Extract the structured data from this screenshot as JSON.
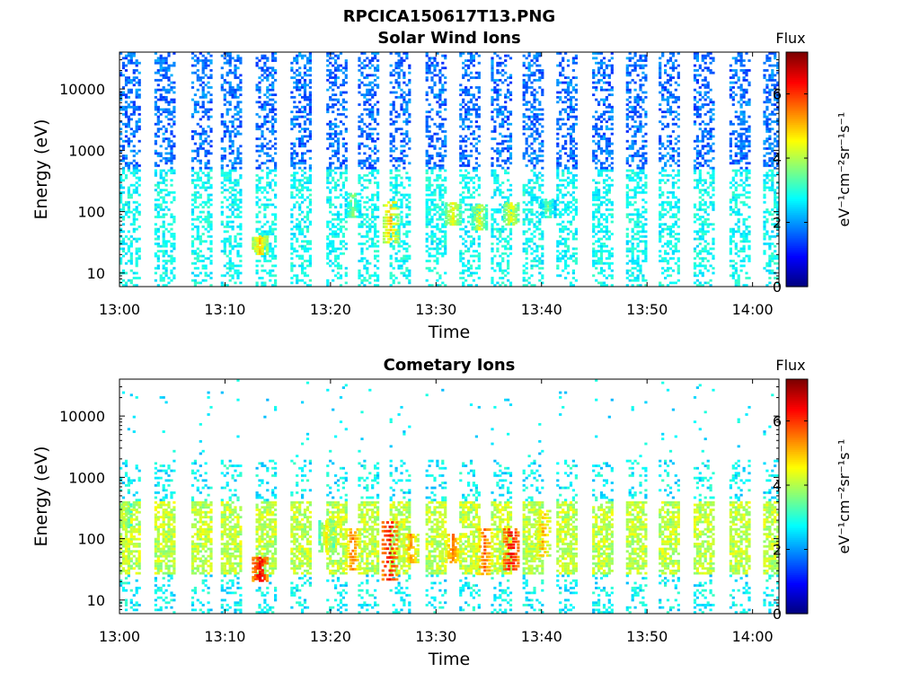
{
  "figure": {
    "title": "RPCICA150617T13.PNG"
  },
  "chart_data": [
    {
      "type": "heatmap",
      "title": "Solar Wind Ions",
      "xlabel": "Time",
      "ylabel": "Energy (eV)",
      "x_ticks": [
        "13:00",
        "13:10",
        "13:20",
        "13:30",
        "13:40",
        "13:50",
        "14:00"
      ],
      "x_range_minutes": [
        0,
        62.5
      ],
      "y_scale": "log",
      "y_ticks": [
        10,
        100,
        1000,
        10000
      ],
      "y_tick_labels": [
        "10",
        "100",
        "1000",
        "10000"
      ],
      "y_range": [
        6,
        40000
      ],
      "colorbar": {
        "title": "Flux",
        "label": "eV⁻¹cm⁻²sr⁻¹s⁻¹",
        "ticks": [
          0,
          2,
          4,
          6
        ],
        "range": [
          0,
          7.3
        ],
        "colormap": "jet"
      },
      "sweep_start_minutes": [
        0.0,
        3.3,
        6.8,
        9.6,
        12.9,
        16.2,
        19.6,
        22.6,
        25.6,
        29.0,
        32.2,
        35.2,
        38.2,
        41.4,
        44.8,
        48.0,
        51.1,
        54.4,
        57.8,
        61.0
      ],
      "sweeps": {
        "high_energy_ev": [
          500,
          40000
        ],
        "high_energy_flux": [
          1.2,
          2.2
        ],
        "low_energy_ev": [
          6,
          500
        ],
        "low_energy_flux": [
          2.4,
          3.2
        ]
      },
      "enhancements": [
        {
          "time_min": 25.6,
          "energy_ev": [
            30,
            150
          ],
          "flux": 5.3
        },
        {
          "time_min": 31.5,
          "energy_ev": [
            60,
            140
          ],
          "flux": 4.8
        },
        {
          "time_min": 34.0,
          "energy_ev": [
            50,
            130
          ],
          "flux": 4.6
        },
        {
          "time_min": 37.0,
          "energy_ev": [
            60,
            140
          ],
          "flux": 4.8
        },
        {
          "time_min": 22.0,
          "energy_ev": [
            80,
            200
          ],
          "flux": 4.0
        },
        {
          "time_min": 13.2,
          "energy_ev": [
            20,
            40
          ],
          "flux": 5.2
        },
        {
          "time_min": 40.5,
          "energy_ev": [
            80,
            160
          ],
          "flux": 3.8
        }
      ]
    },
    {
      "type": "heatmap",
      "title": "Cometary Ions",
      "xlabel": "Time",
      "ylabel": "Energy (eV)",
      "x_ticks": [
        "13:00",
        "13:10",
        "13:20",
        "13:30",
        "13:40",
        "13:50",
        "14:00"
      ],
      "x_range_minutes": [
        0,
        62.5
      ],
      "y_scale": "log",
      "y_ticks": [
        10,
        100,
        1000,
        10000
      ],
      "y_tick_labels": [
        "10",
        "100",
        "1000",
        "10000"
      ],
      "y_range": [
        6,
        40000
      ],
      "colorbar": {
        "title": "Flux",
        "label": "eV⁻¹cm⁻²sr⁻¹s⁻¹",
        "ticks": [
          0,
          2,
          4,
          6
        ],
        "range": [
          0,
          7.3
        ],
        "colormap": "jet"
      },
      "sweep_start_minutes": [
        0.0,
        3.3,
        6.8,
        9.6,
        12.9,
        16.2,
        19.6,
        22.6,
        25.6,
        29.0,
        32.2,
        35.2,
        38.2,
        41.4,
        44.8,
        48.0,
        51.1,
        54.4,
        57.8,
        61.0
      ],
      "sweeps": {
        "core_energy_ev": [
          25,
          400
        ],
        "core_flux": [
          3.6,
          4.6
        ],
        "halo_energy_ev": [
          6,
          2000
        ],
        "halo_flux": [
          2.2,
          3.2
        ]
      },
      "enhancements": [
        {
          "time_min": 25.5,
          "energy_ev": [
            20,
            200
          ],
          "flux": 6.8
        },
        {
          "time_min": 22.0,
          "energy_ev": [
            30,
            150
          ],
          "flux": 5.8
        },
        {
          "time_min": 27.5,
          "energy_ev": [
            40,
            120
          ],
          "flux": 5.6
        },
        {
          "time_min": 31.5,
          "energy_ev": [
            40,
            120
          ],
          "flux": 5.8
        },
        {
          "time_min": 34.5,
          "energy_ev": [
            25,
            150
          ],
          "flux": 6.0
        },
        {
          "time_min": 37.0,
          "energy_ev": [
            30,
            150
          ],
          "flux": 6.8
        },
        {
          "time_min": 13.2,
          "energy_ev": [
            20,
            50
          ],
          "flux": 6.8
        },
        {
          "time_min": 40.0,
          "energy_ev": [
            50,
            300
          ],
          "flux": 5.5
        },
        {
          "time_min": 19.5,
          "energy_ev": [
            60,
            200
          ],
          "flux": 4.8
        },
        {
          "time_min": 0.3,
          "energy_ev": [
            150,
            400
          ],
          "flux": 4.6
        }
      ]
    }
  ]
}
